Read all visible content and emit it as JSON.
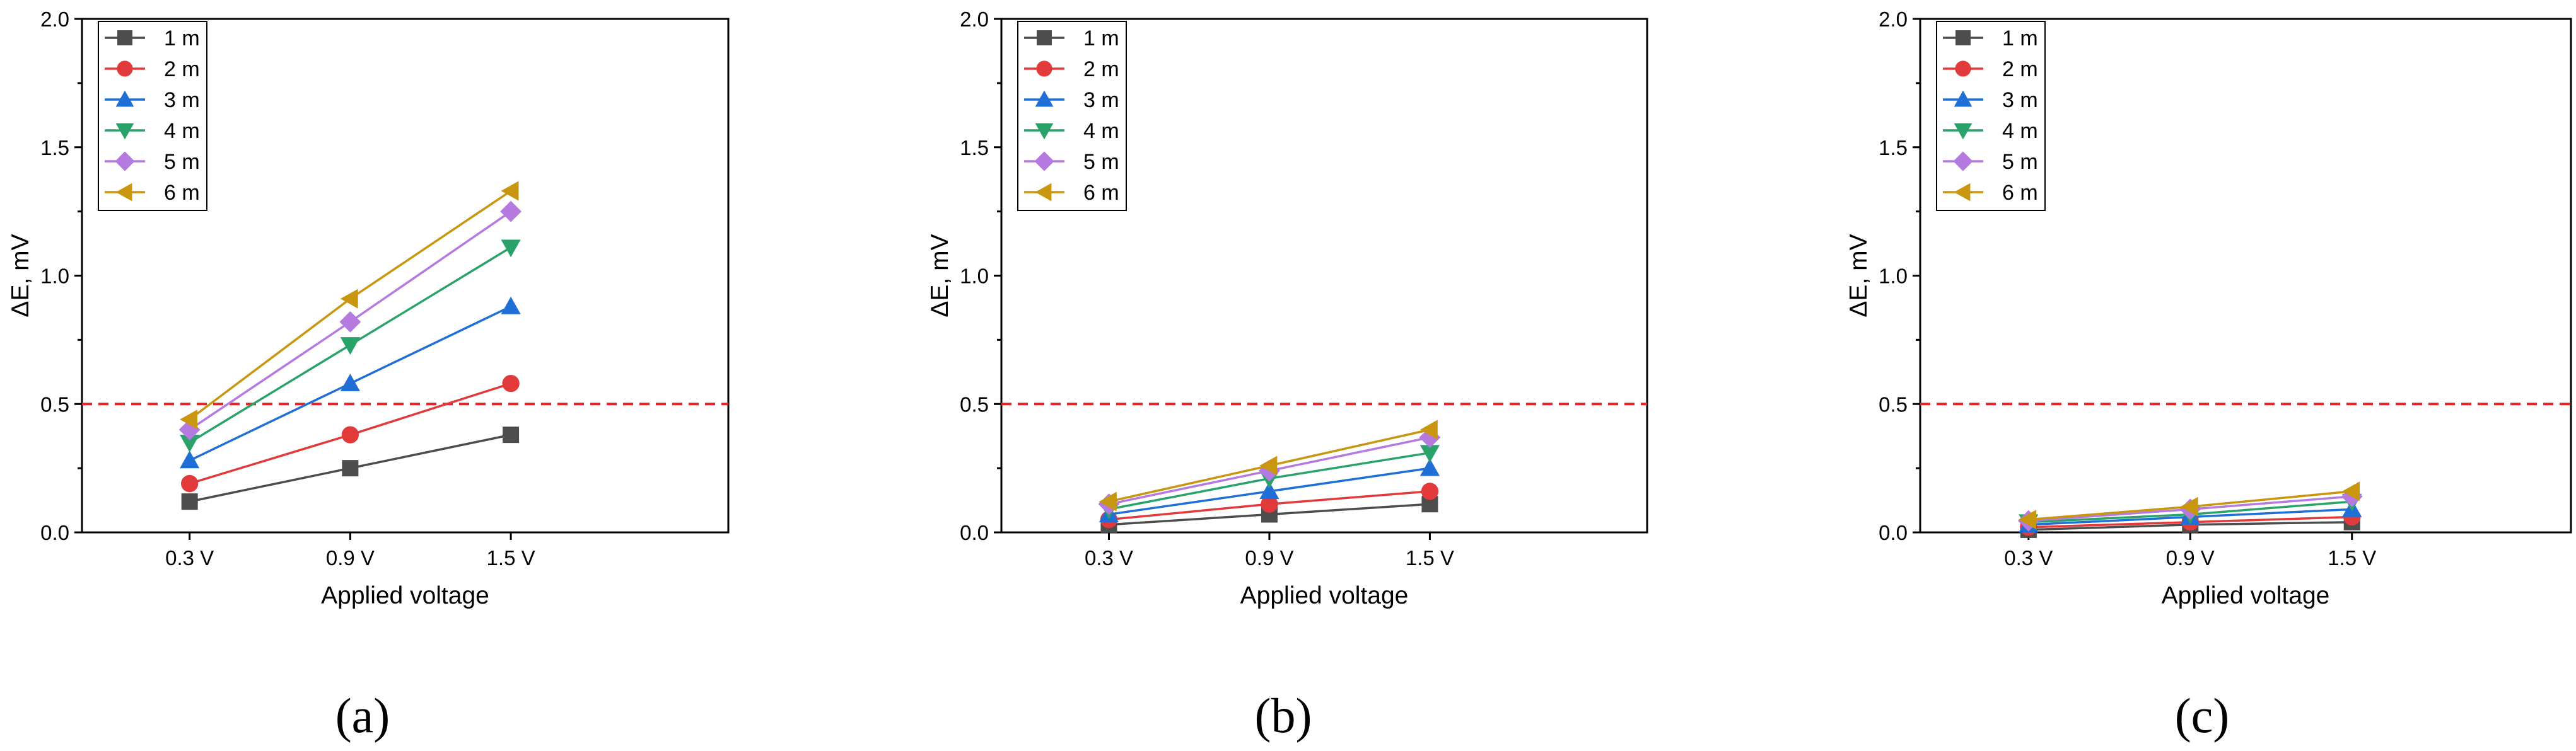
{
  "figure": {
    "threshold": {
      "value": 0.5,
      "color": "#e0262b"
    }
  },
  "series_styles": [
    {
      "name": "1 m",
      "color": "#4d4d4d",
      "marker": "square"
    },
    {
      "name": "2 m",
      "color": "#e23a3a",
      "marker": "circle"
    },
    {
      "name": "3 m",
      "color": "#1f6fd6",
      "marker": "triangle-up"
    },
    {
      "name": "4 m",
      "color": "#2aa36b",
      "marker": "triangle-down"
    },
    {
      "name": "5 m",
      "color": "#b57ae0",
      "marker": "diamond"
    },
    {
      "name": "6 m",
      "color": "#c8960f",
      "marker": "triangle-left"
    }
  ],
  "chart_data": [
    {
      "type": "line",
      "caption": "(a)",
      "title": "",
      "xlabel": "Applied voltage",
      "ylabel": "ΔE, mV",
      "categories": [
        "0.3 V",
        "0.9 V",
        "1.5 V"
      ],
      "ylim": [
        0,
        2.0
      ],
      "yticks": [
        "0.0",
        "0.5",
        "1.0",
        "1.5",
        "2.0"
      ],
      "legend_position": "top-left",
      "series": [
        {
          "name": "1 m",
          "values": [
            0.12,
            0.25,
            0.38
          ]
        },
        {
          "name": "2 m",
          "values": [
            0.19,
            0.38,
            0.58
          ]
        },
        {
          "name": "3 m",
          "values": [
            0.28,
            0.58,
            0.88
          ]
        },
        {
          "name": "4 m",
          "values": [
            0.35,
            0.73,
            1.11
          ]
        },
        {
          "name": "5 m",
          "values": [
            0.4,
            0.82,
            1.25
          ]
        },
        {
          "name": "6 m",
          "values": [
            0.44,
            0.91,
            1.33
          ]
        }
      ]
    },
    {
      "type": "line",
      "caption": "(b)",
      "title": "",
      "xlabel": "Applied voltage",
      "ylabel": "ΔE, mV",
      "categories": [
        "0.3 V",
        "0.9 V",
        "1.5 V"
      ],
      "ylim": [
        0,
        2.0
      ],
      "yticks": [
        "0.0",
        "0.5",
        "1.0",
        "1.5",
        "2.0"
      ],
      "legend_position": "top-left",
      "series": [
        {
          "name": "1 m",
          "values": [
            0.03,
            0.07,
            0.11
          ]
        },
        {
          "name": "2 m",
          "values": [
            0.05,
            0.11,
            0.16
          ]
        },
        {
          "name": "3 m",
          "values": [
            0.07,
            0.16,
            0.25
          ]
        },
        {
          "name": "4 m",
          "values": [
            0.09,
            0.21,
            0.31
          ]
        },
        {
          "name": "5 m",
          "values": [
            0.11,
            0.24,
            0.37
          ]
        },
        {
          "name": "6 m",
          "values": [
            0.12,
            0.26,
            0.4
          ]
        }
      ]
    },
    {
      "type": "line",
      "caption": "(c)",
      "title": "",
      "xlabel": "Applied voltage",
      "ylabel": "ΔE, mV",
      "categories": [
        "0.3 V",
        "0.9 V",
        "1.5 V"
      ],
      "ylim": [
        0,
        2.0
      ],
      "yticks": [
        "0.0",
        "0.5",
        "1.0",
        "1.5",
        "2.0"
      ],
      "legend_position": "top-left",
      "series": [
        {
          "name": "1 m",
          "values": [
            0.01,
            0.03,
            0.04
          ]
        },
        {
          "name": "2 m",
          "values": [
            0.02,
            0.04,
            0.06
          ]
        },
        {
          "name": "3 m",
          "values": [
            0.03,
            0.06,
            0.09
          ]
        },
        {
          "name": "4 m",
          "values": [
            0.04,
            0.07,
            0.12
          ]
        },
        {
          "name": "5 m",
          "values": [
            0.045,
            0.09,
            0.14
          ]
        },
        {
          "name": "6 m",
          "values": [
            0.05,
            0.1,
            0.16
          ]
        }
      ]
    }
  ]
}
